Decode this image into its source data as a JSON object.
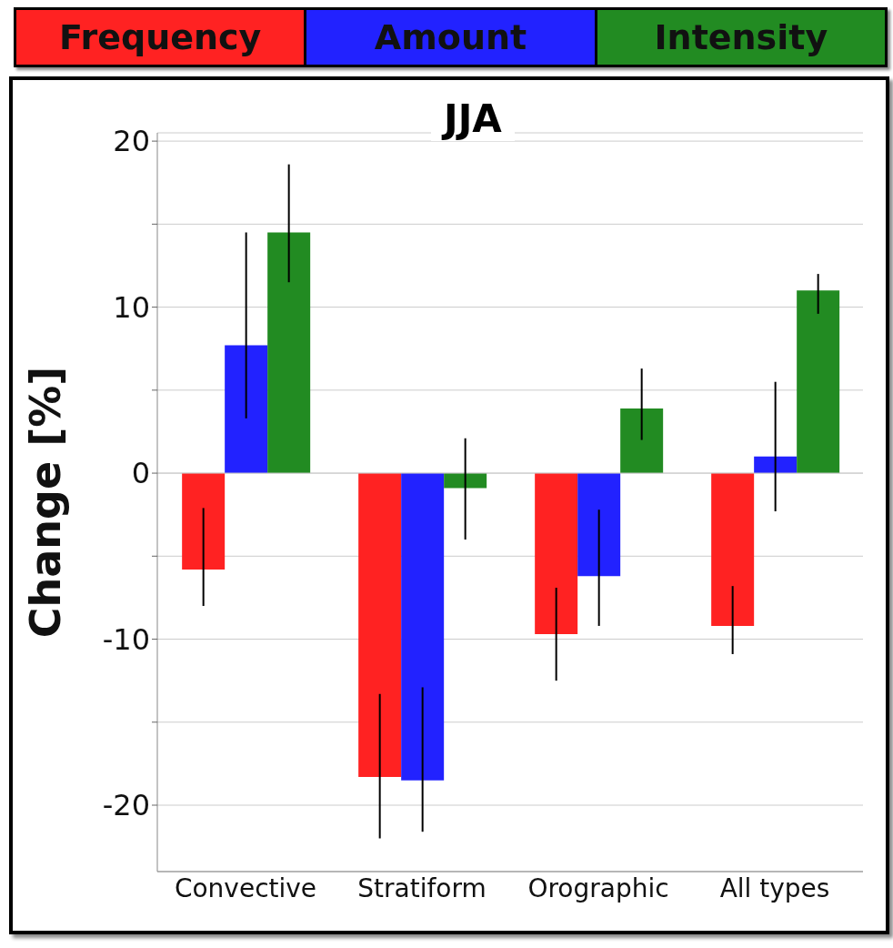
{
  "chart_data": {
    "type": "bar",
    "title": "JJA",
    "ylabel": "Change [%]",
    "categories": [
      "Convective",
      "Stratiform",
      "Orographic",
      "All types"
    ],
    "series": [
      {
        "name": "Frequency",
        "color": "#ff2222",
        "values": [
          -5.8,
          -18.3,
          -9.7,
          -9.2
        ],
        "errors": [
          [
            -8.0,
            -2.1
          ],
          [
            -22.0,
            -13.3
          ],
          [
            -12.5,
            -6.9
          ],
          [
            -10.9,
            -6.8
          ]
        ]
      },
      {
        "name": "Amount",
        "color": "#2222ff",
        "values": [
          7.7,
          -18.5,
          -6.2,
          1.0
        ],
        "errors": [
          [
            3.3,
            14.5
          ],
          [
            -21.6,
            -12.9
          ],
          [
            -9.2,
            -2.2
          ],
          [
            -2.3,
            5.5
          ]
        ]
      },
      {
        "name": "Intensity",
        "color": "#228b22",
        "values": [
          14.5,
          -0.9,
          3.9,
          11.0
        ],
        "errors": [
          [
            11.5,
            18.6
          ],
          [
            -4.0,
            2.1
          ],
          [
            2.0,
            6.3
          ],
          [
            9.6,
            12.0
          ]
        ]
      }
    ],
    "ylim": [
      -24,
      20.5
    ],
    "yticks": [
      {
        "value": -20,
        "label": "-20"
      },
      {
        "value": -15,
        "label": null
      },
      {
        "value": -10,
        "label": "-10"
      },
      {
        "value": -5,
        "label": null
      },
      0,
      {
        "value": 5,
        "label": null
      },
      10,
      {
        "value": 15,
        "label": null
      },
      20
    ],
    "grid": "y",
    "legend": "top"
  }
}
